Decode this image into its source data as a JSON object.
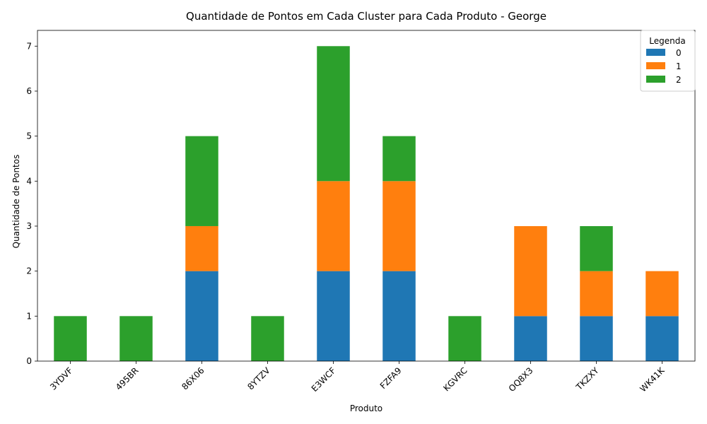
{
  "chart_data": {
    "type": "bar",
    "stacked": true,
    "title": "Quantidade de Pontos em Cada Cluster para Cada Produto - George",
    "xlabel": "Produto",
    "ylabel": "Quantidade de Pontos",
    "ylim": [
      0,
      7.35
    ],
    "yticks": [
      0,
      1,
      2,
      3,
      4,
      5,
      6,
      7
    ],
    "categories": [
      "3YDVF",
      "495BR",
      "86X06",
      "8YTZV",
      "E3WCF",
      "FZFA9",
      "KGVRC",
      "OQ8X3",
      "TKZXY",
      "WK41K"
    ],
    "series": [
      {
        "name": "0",
        "color": "#1f77b4",
        "values": [
          0,
          0,
          2,
          0,
          2,
          2,
          0,
          1,
          1,
          1
        ]
      },
      {
        "name": "1",
        "color": "#ff7f0e",
        "values": [
          0,
          0,
          1,
          0,
          2,
          2,
          0,
          2,
          1,
          1
        ]
      },
      {
        "name": "2",
        "color": "#2ca02c",
        "values": [
          1,
          1,
          2,
          1,
          3,
          1,
          1,
          0,
          1,
          0
        ]
      }
    ],
    "legend": {
      "title": "Legenda",
      "position": "top-right"
    },
    "grid": false
  }
}
